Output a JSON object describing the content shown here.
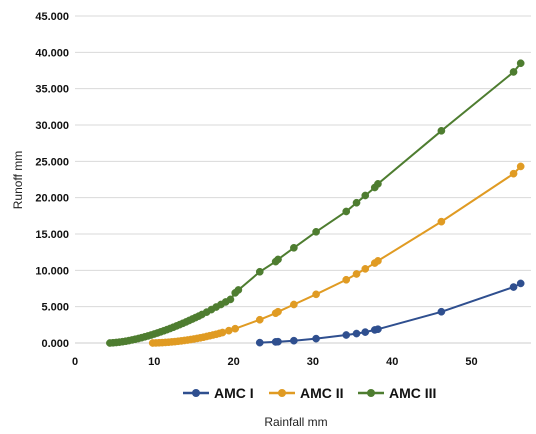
{
  "chart_data": {
    "type": "scatter",
    "xlabel": "Rainfall mm",
    "ylabel": "Runoff mm",
    "xlim": [
      0,
      57.5
    ],
    "ylim": [
      0,
      45
    ],
    "x_ticks": [
      "0",
      "10",
      "20",
      "30",
      "40",
      "50"
    ],
    "x_tick_values": [
      0,
      10,
      20,
      30,
      40,
      50
    ],
    "y_ticks": [
      "0.000",
      "5.000",
      "10.000",
      "15.000",
      "20.000",
      "25.000",
      "30.000",
      "35.000",
      "40.000",
      "45.000"
    ],
    "y_tick_values": [
      0,
      5,
      10,
      15,
      20,
      25,
      30,
      35,
      40,
      45
    ],
    "grid": "horizontal",
    "legend_position": "bottom",
    "series": [
      {
        "name": "AMC I",
        "color": "#2f4f8f",
        "x": [
          23.3,
          25.3,
          25.6,
          27.6,
          30.4,
          34.2,
          35.5,
          36.6,
          37.8,
          38.2,
          46.2,
          55.3,
          56.2
        ],
        "y": [
          0.05,
          0.15,
          0.18,
          0.32,
          0.6,
          1.1,
          1.3,
          1.5,
          1.8,
          1.9,
          4.3,
          7.7,
          8.2
        ]
      },
      {
        "name": "AMC II",
        "color": "#e09b23",
        "x": [
          9.8,
          10.2,
          10.6,
          11.0,
          11.4,
          11.8,
          12.2,
          12.6,
          13.0,
          13.4,
          13.8,
          14.2,
          14.6,
          15.0,
          15.4,
          15.8,
          16.2,
          16.6,
          17.0,
          17.4,
          17.8,
          18.2,
          18.6,
          19.4,
          20.2,
          23.3,
          25.3,
          25.6,
          27.6,
          30.4,
          34.2,
          35.5,
          36.6,
          37.8,
          38.2,
          46.2,
          55.3,
          56.2
        ],
        "y": [
          0.0,
          0.01,
          0.03,
          0.05,
          0.08,
          0.11,
          0.15,
          0.19,
          0.24,
          0.29,
          0.35,
          0.41,
          0.48,
          0.55,
          0.63,
          0.71,
          0.8,
          0.9,
          1.0,
          1.1,
          1.2,
          1.32,
          1.44,
          1.7,
          1.97,
          3.2,
          4.1,
          4.3,
          5.3,
          6.7,
          8.7,
          9.5,
          10.2,
          11.0,
          11.3,
          16.7,
          23.3,
          24.3
        ]
      },
      {
        "name": "AMC III",
        "color": "#4e7d30",
        "x": [
          4.4,
          4.8,
          5.2,
          5.6,
          6.0,
          6.4,
          6.8,
          7.2,
          7.6,
          8.0,
          8.4,
          8.8,
          9.2,
          9.6,
          10.0,
          10.4,
          10.8,
          11.2,
          11.6,
          12.0,
          12.4,
          12.8,
          13.2,
          13.6,
          14.0,
          14.4,
          14.8,
          15.2,
          15.6,
          16.0,
          16.6,
          17.2,
          17.8,
          18.4,
          19.0,
          19.6,
          20.2,
          20.6,
          23.3,
          25.3,
          25.6,
          27.6,
          30.4,
          34.2,
          35.5,
          36.6,
          37.8,
          38.2,
          46.2,
          55.3,
          56.2
        ],
        "y": [
          0.0,
          0.03,
          0.07,
          0.12,
          0.18,
          0.25,
          0.33,
          0.42,
          0.52,
          0.62,
          0.73,
          0.85,
          0.97,
          1.1,
          1.24,
          1.38,
          1.53,
          1.68,
          1.84,
          2.0,
          2.17,
          2.35,
          2.53,
          2.71,
          2.9,
          3.1,
          3.3,
          3.5,
          3.7,
          3.92,
          4.25,
          4.6,
          4.95,
          5.3,
          5.65,
          6.0,
          6.9,
          7.3,
          9.8,
          11.2,
          11.5,
          13.1,
          15.3,
          18.1,
          19.3,
          20.3,
          21.4,
          21.9,
          29.2,
          37.3,
          38.5
        ]
      }
    ]
  }
}
